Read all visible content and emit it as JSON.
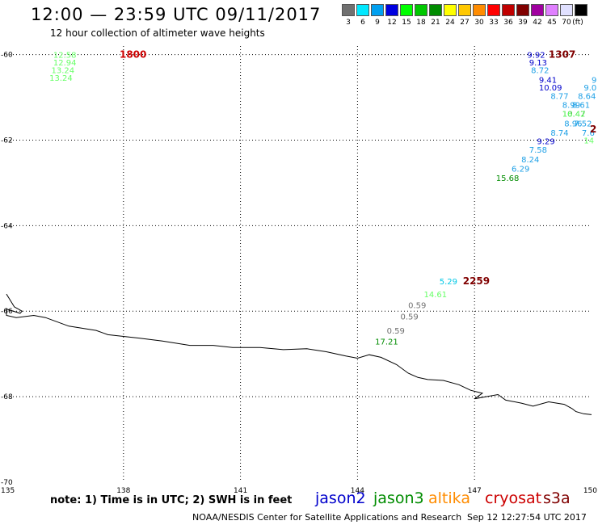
{
  "header": {
    "title": "12:00 — 23:59 UTC 09/11/2017",
    "subtitle": "12 hour collection of altimeter wave heights"
  },
  "legend": {
    "unit": "(ft)",
    "items": [
      {
        "label": "3",
        "color": "#707070"
      },
      {
        "label": "6",
        "color": "#00e8ff"
      },
      {
        "label": "9",
        "color": "#00a0f0"
      },
      {
        "label": "12",
        "color": "#0000e0"
      },
      {
        "label": "15",
        "color": "#00ff00"
      },
      {
        "label": "18",
        "color": "#00c800"
      },
      {
        "label": "21",
        "color": "#008c00"
      },
      {
        "label": "24",
        "color": "#ffff00"
      },
      {
        "label": "27",
        "color": "#ffc800"
      },
      {
        "label": "30",
        "color": "#ff8c00"
      },
      {
        "label": "33",
        "color": "#ff0000"
      },
      {
        "label": "36",
        "color": "#c00000"
      },
      {
        "label": "39",
        "color": "#800000"
      },
      {
        "label": "42",
        "color": "#a000a0"
      },
      {
        "label": "45",
        "color": "#e080ff"
      },
      {
        "label": "70",
        "color": "#e0e0ff"
      },
      {
        "label": "",
        "color": "#000000"
      }
    ]
  },
  "chart_data": {
    "type": "scatter",
    "x_range": [
      135,
      150
    ],
    "y_range": [
      -70,
      -59.8
    ],
    "x_ticks": [
      {
        "label": "135",
        "value": 135
      },
      {
        "label": "138",
        "value": 138
      },
      {
        "label": "141",
        "value": 141
      },
      {
        "label": "144",
        "value": 144
      },
      {
        "label": "147",
        "value": 147
      },
      {
        "label": "150",
        "value": 150
      }
    ],
    "y_ticks": [
      {
        "label": "-60",
        "value": -60
      },
      {
        "label": "-62",
        "value": -62
      },
      {
        "label": "-64",
        "value": -64
      },
      {
        "label": "-66",
        "value": -66
      },
      {
        "label": "-68",
        "value": -68
      },
      {
        "label": "-70",
        "value": -70
      }
    ],
    "grid": true,
    "time_labels": [
      {
        "text": "1800",
        "x": 137.9,
        "y": -60.0,
        "color": "#cc0000"
      },
      {
        "text": "1307",
        "x": 148.9,
        "y": -60.0,
        "color": "#800000"
      },
      {
        "text": "2259",
        "x": 146.7,
        "y": -65.3,
        "color": "#800000"
      },
      {
        "text": "2",
        "x": 150.0,
        "y": -61.75,
        "color": "#800000"
      }
    ],
    "points": [
      {
        "label": "12.58",
        "x": 136.2,
        "y": -60.0,
        "color": "#66ff66"
      },
      {
        "label": "12.94",
        "x": 136.2,
        "y": -60.18,
        "color": "#66ff66"
      },
      {
        "label": "13.24",
        "x": 136.15,
        "y": -60.36,
        "color": "#66ff66"
      },
      {
        "label": "13.24",
        "x": 136.1,
        "y": -60.54,
        "color": "#66ff66"
      },
      {
        "label": "9.92",
        "x": 148.35,
        "y": -60.0,
        "color": "#0000cc"
      },
      {
        "label": "9.13",
        "x": 148.4,
        "y": -60.18,
        "color": "#0000cc"
      },
      {
        "label": "8.72",
        "x": 148.45,
        "y": -60.36,
        "color": "#1ea0e6"
      },
      {
        "label": "9.41",
        "x": 148.65,
        "y": -60.58,
        "color": "#0000cc"
      },
      {
        "label": "10.09",
        "x": 148.65,
        "y": -60.76,
        "color": "#0000cc"
      },
      {
        "label": "8.77",
        "x": 148.95,
        "y": -60.96,
        "color": "#1ea0e6"
      },
      {
        "label": "8.64",
        "x": 149.65,
        "y": -60.96,
        "color": "#1ea0e6"
      },
      {
        "label": "9.0",
        "x": 149.8,
        "y": -60.76,
        "color": "#1ea0e6"
      },
      {
        "label": "9",
        "x": 150.0,
        "y": -60.58,
        "color": "#1ea0e6"
      },
      {
        "label": "8.99",
        "x": 149.25,
        "y": -61.17,
        "color": "#1ea0e6"
      },
      {
        "label": "8.61",
        "x": 149.5,
        "y": -61.17,
        "color": "#1ea0e6"
      },
      {
        "label": "10.47",
        "x": 149.25,
        "y": -61.38,
        "color": "#008c00"
      },
      {
        "label": "16.42",
        "x": 149.25,
        "y": -61.38,
        "color": "#66ff66"
      },
      {
        "label": "8.96",
        "x": 149.3,
        "y": -61.6,
        "color": "#1ea0e6"
      },
      {
        "label": "7.52",
        "x": 149.55,
        "y": -61.6,
        "color": "#1ea0e6"
      },
      {
        "label": "8.74",
        "x": 148.95,
        "y": -61.82,
        "color": "#1ea0e6"
      },
      {
        "label": "7.6",
        "x": 149.75,
        "y": -61.82,
        "color": "#1ea0e6"
      },
      {
        "label": "14",
        "x": 149.8,
        "y": -62.0,
        "color": "#66ff66"
      },
      {
        "label": "9.29",
        "x": 148.6,
        "y": -62.02,
        "color": "#0000cc"
      },
      {
        "label": "7.58",
        "x": 148.4,
        "y": -62.22,
        "color": "#1ea0e6"
      },
      {
        "label": "8.24",
        "x": 148.2,
        "y": -62.44,
        "color": "#1ea0e6"
      },
      {
        "label": "6.29",
        "x": 147.95,
        "y": -62.66,
        "color": "#1ea0e6"
      },
      {
        "label": "15.68",
        "x": 147.55,
        "y": -62.88,
        "color": "#008c00"
      },
      {
        "label": "5.29",
        "x": 146.1,
        "y": -65.3,
        "color": "#00c8e6"
      },
      {
        "label": "14.61",
        "x": 145.7,
        "y": -65.6,
        "color": "#66ff66"
      },
      {
        "label": "0.59",
        "x": 145.3,
        "y": -65.85,
        "color": "#707070"
      },
      {
        "label": "0.59",
        "x": 145.1,
        "y": -66.12,
        "color": "#707070"
      },
      {
        "label": "0.59",
        "x": 144.75,
        "y": -66.45,
        "color": "#707070"
      },
      {
        "label": "17.21",
        "x": 144.45,
        "y": -66.7,
        "color": "#008c00"
      }
    ],
    "coastline": [
      [
        135.0,
        -65.6
      ],
      [
        135.2,
        -65.9
      ],
      [
        135.4,
        -66.0
      ],
      [
        135.35,
        -66.05
      ],
      [
        135.0,
        -65.95
      ],
      [
        135.0,
        -66.1
      ],
      [
        135.25,
        -66.15
      ],
      [
        135.7,
        -66.1
      ],
      [
        136.0,
        -66.15
      ],
      [
        136.6,
        -66.35
      ],
      [
        137.3,
        -66.45
      ],
      [
        137.6,
        -66.55
      ],
      [
        138.4,
        -66.63
      ],
      [
        139.0,
        -66.7
      ],
      [
        139.7,
        -66.8
      ],
      [
        140.3,
        -66.8
      ],
      [
        140.8,
        -66.85
      ],
      [
        141.5,
        -66.85
      ],
      [
        142.1,
        -66.9
      ],
      [
        142.7,
        -66.88
      ],
      [
        143.2,
        -66.95
      ],
      [
        143.7,
        -67.05
      ],
      [
        144.0,
        -67.1
      ],
      [
        144.3,
        -67.02
      ],
      [
        144.6,
        -67.08
      ],
      [
        145.0,
        -67.25
      ],
      [
        145.3,
        -67.45
      ],
      [
        145.55,
        -67.55
      ],
      [
        145.8,
        -67.6
      ],
      [
        146.2,
        -67.62
      ],
      [
        146.6,
        -67.72
      ],
      [
        146.9,
        -67.85
      ],
      [
        147.2,
        -67.92
      ],
      [
        147.0,
        -68.05
      ],
      [
        147.3,
        -68.0
      ],
      [
        147.6,
        -67.95
      ],
      [
        147.8,
        -68.08
      ],
      [
        148.2,
        -68.15
      ],
      [
        148.5,
        -68.22
      ],
      [
        148.9,
        -68.12
      ],
      [
        149.3,
        -68.18
      ],
      [
        149.5,
        -68.28
      ],
      [
        149.6,
        -68.35
      ],
      [
        149.8,
        -68.4
      ],
      [
        150.0,
        -68.42
      ]
    ]
  },
  "footer": {
    "note": "note: 1) Time is in UTC; 2) SWH is in feet",
    "satellites": [
      {
        "name": "jason2",
        "color": "#0000cc"
      },
      {
        "name": "jason3",
        "color": "#008c00"
      },
      {
        "name": "altika",
        "color": "#ff8c00"
      },
      {
        "name": "cryosat",
        "color": "#cc0000"
      },
      {
        "name": "s3a",
        "color": "#800000"
      }
    ],
    "credit": "NOAA/NESDIS Center for Satellite Applications and Research",
    "timestamp": "Sep 12 12:27:54 UTC 2017"
  }
}
